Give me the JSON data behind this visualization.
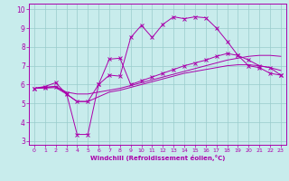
{
  "xlabel": "Windchill (Refroidissement éolien,°C)",
  "xlim": [
    -0.5,
    23.5
  ],
  "ylim": [
    2.8,
    10.3
  ],
  "xticks": [
    0,
    1,
    2,
    3,
    4,
    5,
    6,
    7,
    8,
    9,
    10,
    11,
    12,
    13,
    14,
    15,
    16,
    17,
    18,
    19,
    20,
    21,
    22,
    23
  ],
  "yticks": [
    3,
    4,
    5,
    6,
    7,
    8,
    9,
    10
  ],
  "bg_color": "#c8ecec",
  "line_color": "#aa00aa",
  "grid_color": "#99cccc",
  "series": [
    {
      "x": [
        0,
        1,
        2,
        3,
        4,
        5,
        6,
        7,
        8,
        9,
        10,
        11,
        12,
        13,
        14,
        15,
        16,
        17,
        18,
        19,
        20,
        21,
        22,
        23
      ],
      "y": [
        5.8,
        5.9,
        6.1,
        5.5,
        5.1,
        5.1,
        6.0,
        6.5,
        6.45,
        8.5,
        9.15,
        8.5,
        9.2,
        9.6,
        9.5,
        9.6,
        9.55,
        9.0,
        8.3,
        7.55,
        7.0,
        6.9,
        6.6,
        6.5
      ],
      "marker": "x",
      "markersize": 3
    },
    {
      "x": [
        0,
        1,
        2,
        3,
        4,
        5,
        6,
        7,
        8,
        9,
        10,
        11,
        12,
        13,
        14,
        15,
        16,
        17,
        18,
        19,
        20,
        21,
        22,
        23
      ],
      "y": [
        5.8,
        5.85,
        5.9,
        5.55,
        3.35,
        3.35,
        6.0,
        7.35,
        7.4,
        6.0,
        6.2,
        6.4,
        6.6,
        6.8,
        7.0,
        7.15,
        7.3,
        7.5,
        7.65,
        7.55,
        7.3,
        7.0,
        6.9,
        6.5
      ],
      "marker": "x",
      "markersize": 3
    },
    {
      "x": [
        0,
        1,
        2,
        3,
        4,
        5,
        6,
        7,
        8,
        9,
        10,
        11,
        12,
        13,
        14,
        15,
        16,
        17,
        18,
        19,
        20,
        21,
        22,
        23
      ],
      "y": [
        5.8,
        5.85,
        5.9,
        5.6,
        5.5,
        5.5,
        5.6,
        5.7,
        5.8,
        5.95,
        6.1,
        6.25,
        6.4,
        6.55,
        6.7,
        6.85,
        7.0,
        7.15,
        7.3,
        7.4,
        7.5,
        7.55,
        7.55,
        7.5
      ],
      "marker": null,
      "markersize": 0
    },
    {
      "x": [
        0,
        1,
        2,
        3,
        4,
        5,
        6,
        7,
        8,
        9,
        10,
        11,
        12,
        13,
        14,
        15,
        16,
        17,
        18,
        19,
        20,
        21,
        22,
        23
      ],
      "y": [
        5.8,
        5.82,
        5.84,
        5.5,
        5.1,
        5.1,
        5.35,
        5.6,
        5.7,
        5.85,
        6.0,
        6.15,
        6.3,
        6.45,
        6.6,
        6.7,
        6.8,
        6.9,
        7.0,
        7.05,
        7.05,
        7.0,
        6.9,
        6.75
      ],
      "marker": null,
      "markersize": 0
    }
  ]
}
